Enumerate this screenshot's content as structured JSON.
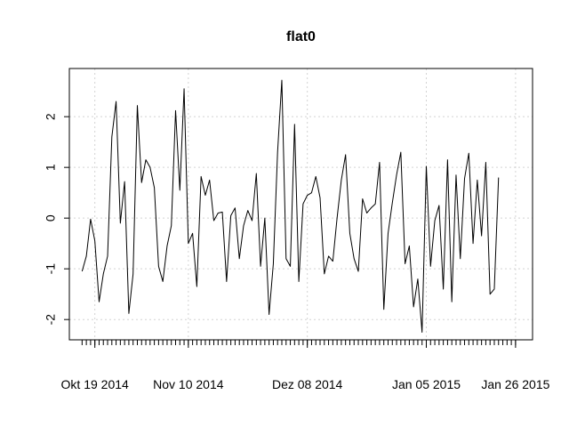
{
  "chart_data": {
    "type": "line",
    "title": "flat0",
    "xlabel": "",
    "ylabel": "",
    "grid": true,
    "legend": "none",
    "colors": {
      "line": "#000000",
      "grid": "#d3d3d3",
      "axis": "#000000"
    },
    "x_start": "2014-10-16",
    "x_end": "2015-01-26",
    "xlim": [
      "2014-10-13",
      "2015-01-30"
    ],
    "ylim": [
      -2.4,
      2.95
    ],
    "x_ticks": [
      {
        "date": "2014-10-19",
        "label": "Okt 19 2014"
      },
      {
        "date": "2014-11-10",
        "label": "Nov 10 2014"
      },
      {
        "date": "2014-12-08",
        "label": "Dez 08 2014"
      },
      {
        "date": "2015-01-05",
        "label": "Jan 05 2015"
      },
      {
        "date": "2015-01-26",
        "label": "Jan 26 2015"
      }
    ],
    "y_ticks": [
      -2,
      -1,
      0,
      1,
      2
    ],
    "values": [
      -1.05,
      -0.75,
      -0.02,
      -0.45,
      -1.65,
      -1.1,
      -0.75,
      1.6,
      2.3,
      -0.1,
      0.72,
      -1.88,
      -1.1,
      2.22,
      0.7,
      1.15,
      1.0,
      0.6,
      -0.95,
      -1.25,
      -0.55,
      -0.15,
      2.12,
      0.55,
      2.55,
      -0.5,
      -0.3,
      -1.35,
      0.82,
      0.45,
      0.75,
      -0.05,
      0.1,
      0.12,
      -1.25,
      0.05,
      0.2,
      -0.8,
      -0.15,
      0.15,
      -0.05,
      0.88,
      -0.95,
      0.0,
      -1.9,
      -0.9,
      1.3,
      2.72,
      -0.8,
      -0.95,
      1.85,
      -1.25,
      0.28,
      0.45,
      0.5,
      0.82,
      0.4,
      -1.1,
      -0.75,
      -0.85,
      0.0,
      0.75,
      1.25,
      -0.3,
      -0.8,
      -1.05,
      0.38,
      0.1,
      0.2,
      0.28,
      1.1,
      -1.8,
      -0.3,
      0.3,
      0.85,
      1.3,
      -0.9,
      -0.55,
      -1.75,
      -1.2,
      -2.25,
      1.02,
      -0.95,
      -0.05,
      0.25,
      -1.4,
      1.15,
      -1.65,
      0.85,
      -0.8,
      0.78,
      1.28,
      -0.5,
      0.75,
      -0.35,
      1.1,
      -1.5,
      -1.4,
      0.8
    ]
  }
}
